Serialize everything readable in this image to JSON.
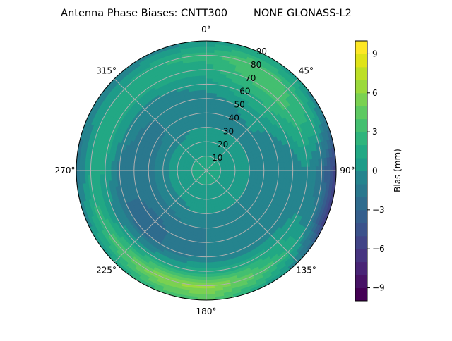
{
  "chart_data": {
    "type": "heatmap",
    "projection": "polar",
    "title": "Antenna Phase Biases: CNTT300        NONE GLONASS-L2",
    "theta_direction": "clockwise",
    "theta_zero": "north",
    "theta_ticks": [
      "0°",
      "45°",
      "90°",
      "135°",
      "180°",
      "225°",
      "270°",
      "315°"
    ],
    "theta_tick_values": [
      0,
      45,
      90,
      135,
      180,
      225,
      270,
      315
    ],
    "r_ticks": [
      "10",
      "20",
      "30",
      "40",
      "50",
      "60",
      "70",
      "80",
      "90"
    ],
    "r_tick_values": [
      10,
      20,
      30,
      40,
      50,
      60,
      70,
      80,
      90
    ],
    "rlim": [
      0,
      90
    ],
    "grid": true,
    "azimuth": [
      0,
      22.5,
      45,
      67.5,
      90,
      112.5,
      135,
      157.5,
      180,
      202.5,
      225,
      247.5,
      270,
      292.5,
      315,
      337.5
    ],
    "zenith": [
      0,
      10,
      20,
      30,
      40,
      50,
      60,
      70,
      80,
      90
    ],
    "values": [
      [
        1,
        1,
        1,
        1,
        1,
        1,
        1,
        1,
        1,
        1,
        1,
        1,
        1,
        1,
        1,
        1
      ],
      [
        1,
        1,
        1,
        1,
        1,
        1,
        1,
        1,
        1,
        1,
        1,
        1,
        1,
        1,
        1,
        1
      ],
      [
        0.5,
        0.5,
        0.5,
        0.5,
        0.5,
        0.5,
        0.5,
        0.5,
        0.5,
        0.5,
        0.5,
        0.5,
        0.5,
        0.5,
        0.5,
        0.5
      ],
      [
        0,
        0,
        0,
        0,
        0,
        0,
        0,
        0,
        0,
        0,
        -0.5,
        -0.5,
        -0.5,
        -0.5,
        -0.5,
        0
      ],
      [
        -1,
        -0.5,
        0,
        -0.5,
        -1,
        -1,
        -1,
        -1,
        -1,
        -1,
        -1.5,
        -1.5,
        -1.5,
        -1.5,
        -1,
        -1
      ],
      [
        -0.5,
        0,
        0.5,
        -0.5,
        -1,
        -1,
        -1,
        -1,
        -1,
        -1.5,
        -2.5,
        -2,
        -2,
        -1.5,
        -1,
        -0.5
      ],
      [
        0.5,
        1.5,
        2,
        0.5,
        -1,
        -1,
        -0.5,
        -1,
        -1,
        -1.5,
        -2.5,
        -2,
        -1.5,
        -0.5,
        -0.5,
        0
      ],
      [
        1.5,
        3,
        3.5,
        2,
        0,
        0,
        1,
        1.5,
        1.5,
        1,
        0.5,
        0,
        1,
        1.5,
        1.5,
        1.5
      ],
      [
        2.5,
        4,
        3,
        1.5,
        -2,
        -1,
        2,
        4.5,
        6.5,
        6,
        4,
        2.5,
        1,
        1,
        1,
        2
      ],
      [
        0,
        1,
        0.5,
        -1.5,
        -6,
        -6,
        -1,
        1.5,
        4,
        3,
        1,
        -0.5,
        -1.5,
        -1,
        -1,
        -0.5
      ]
    ],
    "colorbar": {
      "label": "Bias (mm)",
      "range": [
        -10,
        10
      ],
      "levels": [
        -10,
        -9,
        -8,
        -7,
        -6,
        -5,
        -4,
        -3,
        -2,
        -1,
        0,
        1,
        2,
        3,
        4,
        5,
        6,
        7,
        8,
        9,
        10
      ],
      "ticks": [
        "9",
        "6",
        "3",
        "0",
        "−3",
        "−6",
        "−9"
      ],
      "tick_values": [
        9,
        6,
        3,
        0,
        -3,
        -6,
        -9
      ],
      "colormap": "viridis",
      "colors": [
        "#440154",
        "#471365",
        "#482475",
        "#463480",
        "#414487",
        "#3b528b",
        "#355f8d",
        "#2f6c8e",
        "#2a788e",
        "#25848e",
        "#1e9c89",
        "#22a884",
        "#2fb47c",
        "#44bf70",
        "#5ec962",
        "#7ad151",
        "#9bd93c",
        "#bddf26",
        "#dfe318",
        "#fde725"
      ]
    },
    "grid_color": "#b0b0b0"
  }
}
